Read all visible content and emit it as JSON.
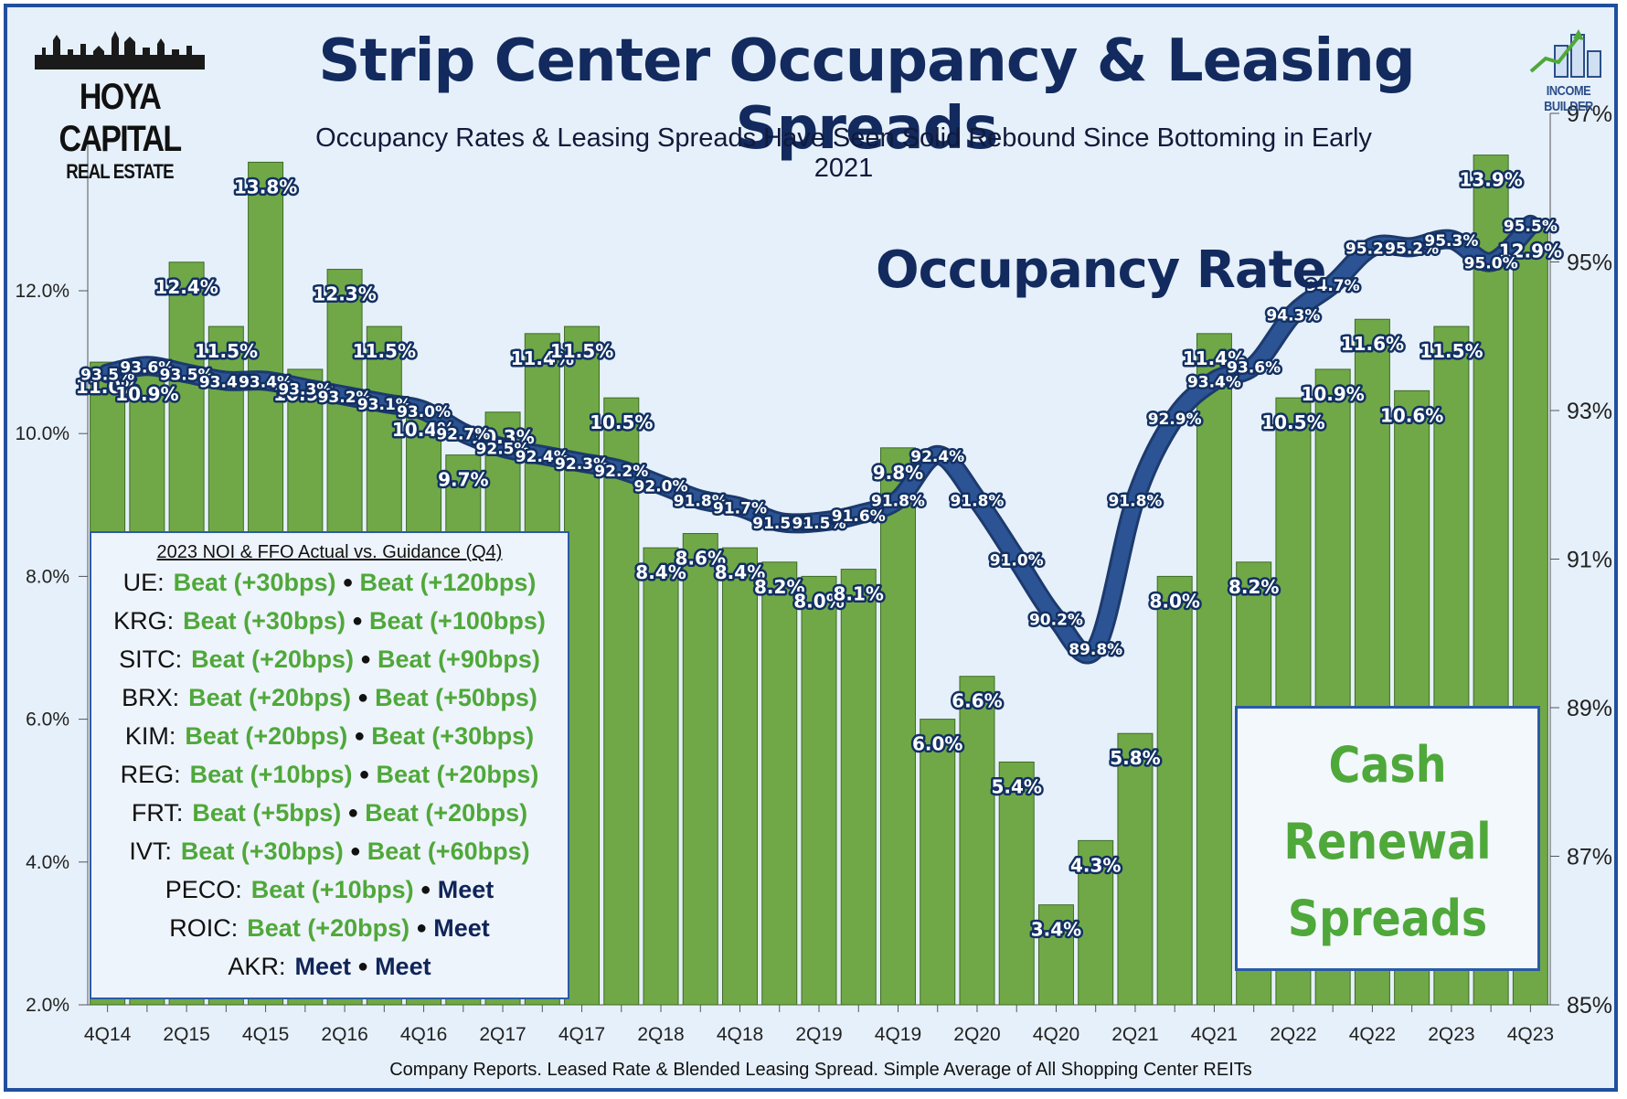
{
  "header": {
    "title": "Strip Center Occupancy & Leasing Spreads",
    "subtitle": "Occupancy Rates & Leasing Spreads Have Seen Solid Rebound Since Bottoming in Early 2021",
    "logo_left_line1": "HOYA CAPITAL",
    "logo_left_line2": "REAL ESTATE",
    "logo_right": "INCOME BUILDER"
  },
  "occupancy_label": "Occupancy Rate",
  "cash_renewal_label": [
    "Cash",
    "Renewal",
    "Spreads"
  ],
  "source": "Company Reports. Leased Rate & Blended Leasing Spread. Simple Average of All Shopping Center REITs",
  "guidance": {
    "title": "2023 NOI & FFO Actual vs. Guidance (Q4)",
    "rows": [
      {
        "ticker": "UE:",
        "noi": "Beat (+30bps)",
        "ffo": "Beat (+120bps)"
      },
      {
        "ticker": "KRG:",
        "noi": "Beat (+30bps)",
        "ffo": "Beat (+100bps)"
      },
      {
        "ticker": "SITC:",
        "noi": "Beat (+20bps)",
        "ffo": "Beat (+90bps)"
      },
      {
        "ticker": "BRX:",
        "noi": "Beat (+20bps)",
        "ffo": "Beat (+50bps)"
      },
      {
        "ticker": "KIM:",
        "noi": "Beat (+20bps)",
        "ffo": "Beat (+30bps)"
      },
      {
        "ticker": "REG:",
        "noi": "Beat (+10bps)",
        "ffo": "Beat (+20bps)"
      },
      {
        "ticker": "FRT:",
        "noi": "Beat (+5bps)",
        "ffo": "Beat (+20bps)"
      },
      {
        "ticker": "IVT:",
        "noi": "Beat (+30bps)",
        "ffo": "Beat (+60bps)"
      },
      {
        "ticker": "PECO:",
        "noi": "Beat (+10bps)",
        "ffo": "Meet"
      },
      {
        "ticker": "ROIC:",
        "noi": "Beat (+20bps)",
        "ffo": "Meet"
      },
      {
        "ticker": "AKR:",
        "noi": "Meet",
        "ffo": "Meet"
      }
    ]
  },
  "colors": {
    "bar": "#70a847",
    "line": "#2c5494",
    "title": "#122a5e",
    "beat": "#4fa83a"
  },
  "chart_data": {
    "type": "bar",
    "quarters": [
      "4Q14",
      "1Q15",
      "2Q15",
      "3Q15",
      "4Q15",
      "1Q16",
      "2Q16",
      "3Q16",
      "4Q16",
      "1Q17",
      "2Q17",
      "3Q17",
      "4Q17",
      "1Q18",
      "2Q18",
      "3Q18",
      "4Q18",
      "1Q19",
      "2Q19",
      "3Q19",
      "4Q19",
      "1Q20",
      "2Q20",
      "3Q20",
      "4Q20",
      "1Q21",
      "2Q21",
      "3Q21",
      "4Q21",
      "1Q22",
      "2Q22",
      "3Q22",
      "4Q22",
      "1Q23",
      "2Q23",
      "3Q23",
      "4Q23"
    ],
    "x_tick_labels": [
      "4Q14",
      "2Q15",
      "4Q15",
      "2Q16",
      "4Q16",
      "2Q17",
      "4Q17",
      "2Q18",
      "4Q18",
      "2Q19",
      "4Q19",
      "2Q20",
      "4Q20",
      "2Q21",
      "4Q21",
      "2Q22",
      "4Q22",
      "2Q23",
      "4Q23"
    ],
    "series": [
      {
        "name": "Cash Renewal Spreads",
        "type": "bar",
        "axis": "left",
        "values": [
          11.0,
          10.9,
          12.4,
          11.5,
          13.8,
          10.9,
          12.3,
          11.5,
          10.4,
          9.7,
          10.3,
          11.4,
          11.5,
          10.5,
          8.4,
          8.6,
          8.4,
          8.2,
          8.0,
          8.1,
          9.8,
          6.0,
          6.6,
          5.4,
          3.4,
          4.3,
          5.8,
          8.0,
          11.4,
          8.2,
          10.5,
          10.9,
          11.6,
          10.6,
          11.5,
          13.9,
          12.9
        ],
        "labels": [
          "11.0%",
          "10.9%",
          "12.4%",
          "11.5%",
          "13.8%",
          "10.9%",
          "12.3%",
          "11.5%",
          "10.4%",
          "9.7%",
          "10.3%",
          "11.4%",
          "11.5%",
          "10.5%",
          "8.4%",
          "8.6%",
          "8.4%",
          "8.2%",
          "8.0%",
          "8.1%",
          "9.8%",
          "6.0%",
          "6.6%",
          "5.4%",
          "3.4%",
          "4.3%",
          "5.8%",
          "8.0%",
          "11.4%",
          "8.2%",
          "10.5%",
          "10.9%",
          "11.6%",
          "10.6%",
          "11.5%",
          "13.9%",
          "12.9%"
        ]
      },
      {
        "name": "Occupancy Rate",
        "type": "line",
        "axis": "right",
        "values": [
          93.5,
          93.6,
          93.5,
          93.4,
          93.4,
          93.3,
          93.2,
          93.1,
          93.0,
          92.7,
          92.5,
          92.4,
          92.3,
          92.2,
          92.0,
          91.8,
          91.7,
          91.5,
          91.5,
          91.6,
          91.8,
          92.4,
          91.8,
          91.0,
          90.2,
          89.8,
          91.8,
          92.9,
          93.4,
          93.6,
          94.3,
          94.7,
          95.2,
          95.2,
          95.3,
          95.0,
          95.5
        ],
        "labels": [
          "93.5%",
          "93.6%",
          "93.5%",
          "93.4%",
          "93.4%",
          "93.3%",
          "93.2%",
          "93.1%",
          "93.0%",
          "92.7%",
          "92.5%",
          "92.4%",
          "92.3%",
          "92.2%",
          "92.0%",
          "91.8%",
          "91.7%",
          "91.5%",
          "91.5%",
          "91.6%",
          "91.8%",
          "92.4%",
          "91.8%",
          "91.0%",
          "90.2%",
          "89.8%",
          "91.8%",
          "92.9%",
          "93.4%",
          "93.6%",
          "94.3%",
          "94.7%",
          "95.2%",
          "95.2%",
          "95.3%",
          "95.0%",
          "95.5%"
        ]
      }
    ],
    "y_left": {
      "min": 2.0,
      "max": 13.0,
      "ticks": [
        "2.0%",
        "4.0%",
        "6.0%",
        "8.0%",
        "10.0%",
        "12.0%"
      ]
    },
    "y_right": {
      "min": 85,
      "max": 97,
      "ticks": [
        "85%",
        "87%",
        "89%",
        "91%",
        "93%",
        "95%",
        "97%"
      ]
    }
  }
}
